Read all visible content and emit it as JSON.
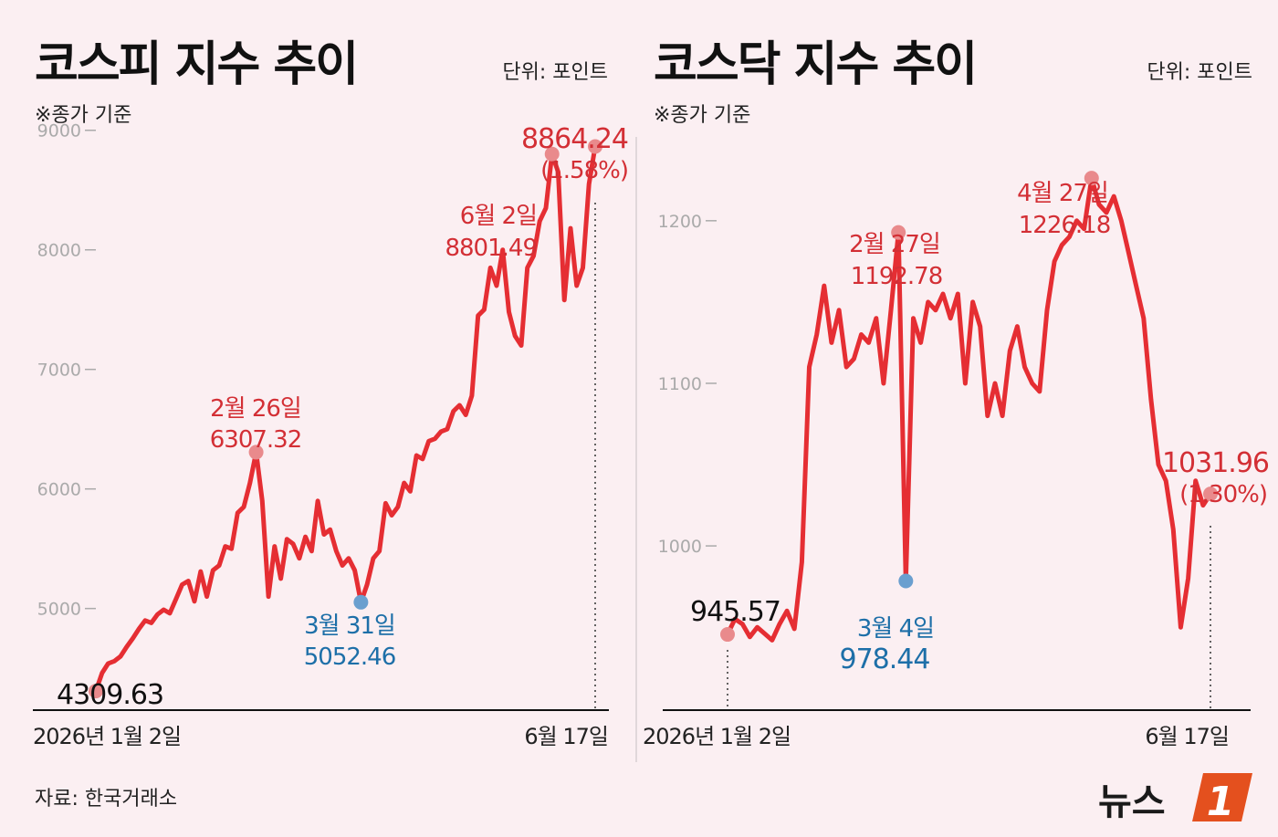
{
  "chart_data": [
    {
      "type": "line",
      "title": "코스피 지수 추이",
      "unit": "단위: 포인트",
      "basis": "※종가 기준",
      "y_ticks": [
        5000,
        6000,
        7000,
        8000,
        9000
      ],
      "ylim": [
        4150,
        9250
      ],
      "x_start_label": "2026년 1월 2일",
      "x_end_label": "6월 17일",
      "series": [
        {
          "values": [
            4309.63,
            4460,
            4540,
            4560,
            4600,
            4680,
            4750,
            4830,
            4900,
            4880,
            4950,
            4990,
            4960,
            5080,
            5200,
            5230,
            5060,
            5310,
            5100,
            5320,
            5360,
            5520,
            5500,
            5800,
            5850,
            6050,
            6307.32,
            5900,
            5100,
            5520,
            5250,
            5580,
            5540,
            5420,
            5600,
            5480,
            5900,
            5620,
            5660,
            5480,
            5360,
            5420,
            5320,
            5052.46,
            5200,
            5420,
            5480,
            5880,
            5780,
            5850,
            6050,
            5980,
            6280,
            6250,
            6400,
            6420,
            6480,
            6500,
            6650,
            6700,
            6620,
            6780,
            7450,
            7500,
            7850,
            7700,
            8000,
            7480,
            7280,
            7200,
            7850,
            7950,
            8240,
            8350,
            8801.49,
            8650,
            7580,
            8180,
            7700,
            7850,
            8550,
            8864.24
          ]
        }
      ],
      "annotations": [
        {
          "date": "2월 26일",
          "value": "6307.32",
          "color": "red"
        },
        {
          "date": "3월 31일",
          "value": "5052.46",
          "color": "blue"
        },
        {
          "date": "6월 2일",
          "value": "8801.49",
          "color": "red"
        },
        {
          "value": "8864.24",
          "change": "(1.58%)",
          "color": "red"
        },
        {
          "value": "4309.63",
          "color": "black"
        }
      ]
    },
    {
      "type": "line",
      "title": "코스닥 지수 추이",
      "unit": "단위: 포인트",
      "basis": "※종가 기준",
      "y_ticks": [
        1000,
        1100,
        1200
      ],
      "ylim": [
        899,
        1274
      ],
      "x_start_label": "2026년 1월 2일",
      "x_end_label": "6월 17일",
      "series": [
        {
          "values": [
            945.57,
            955,
            952,
            944,
            950,
            946,
            942,
            952,
            960,
            949,
            990,
            1110,
            1130,
            1160,
            1125,
            1145,
            1110,
            1115,
            1130,
            1125,
            1140,
            1100,
            1145,
            1192.78,
            978.44,
            1140,
            1125,
            1150,
            1145,
            1155,
            1140,
            1155,
            1100,
            1150,
            1135,
            1080,
            1100,
            1080,
            1120,
            1135,
            1110,
            1100,
            1095,
            1145,
            1175,
            1185,
            1190,
            1200,
            1195,
            1226.18,
            1210,
            1205,
            1215,
            1200,
            1180,
            1160,
            1140,
            1090,
            1050,
            1040,
            1010,
            950,
            980,
            1040,
            1025,
            1031.96
          ]
        }
      ],
      "annotations": [
        {
          "value": "945.57",
          "color": "black"
        },
        {
          "date": "3월 4일",
          "value": "978.44",
          "color": "blue"
        },
        {
          "date": "2월 27일",
          "value": "1192.78",
          "color": "red"
        },
        {
          "date": "4월 27일",
          "value": "1226.18",
          "color": "red"
        },
        {
          "value": "1031.96",
          "change": "(1.30%)",
          "color": "red"
        }
      ]
    }
  ],
  "source": "자료: 한국거래소",
  "logo": {
    "text": "뉴스",
    "badge": "1"
  },
  "colors": {
    "line": "#e52e33",
    "marker_red": "#e98a8c",
    "marker_blue": "#6a9fcf",
    "label_red": "#d32f35",
    "label_blue": "#1d6fa8",
    "background": "#fbeff2"
  }
}
